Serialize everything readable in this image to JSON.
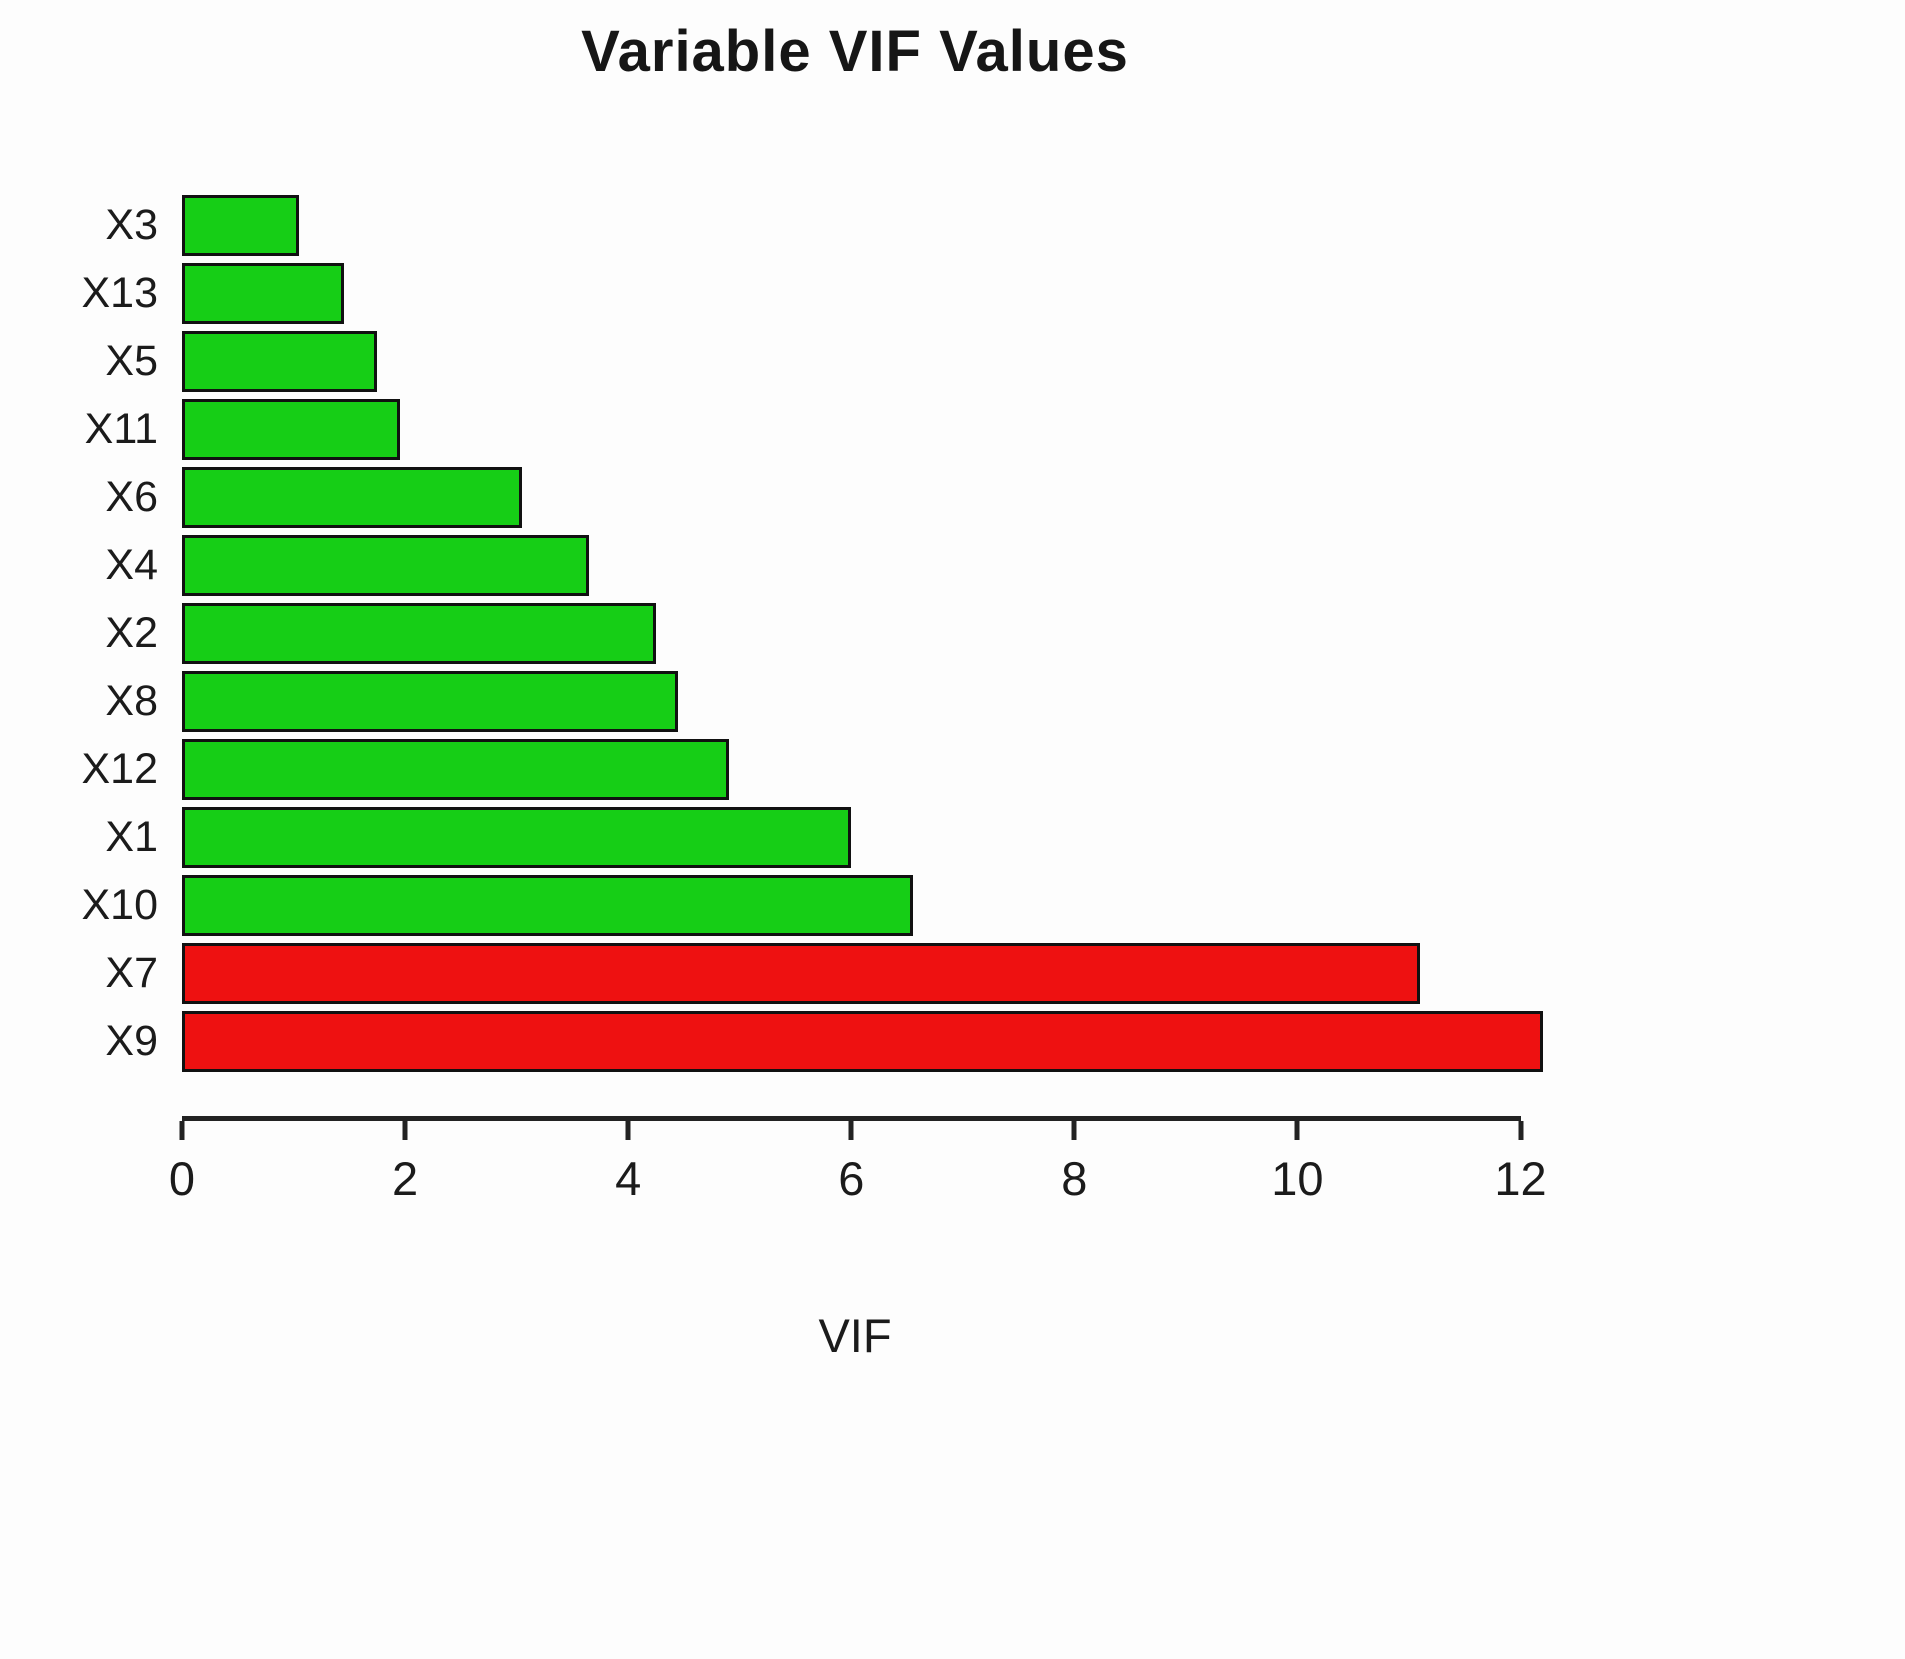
{
  "chart_data": {
    "type": "bar",
    "orientation": "horizontal",
    "title": "Variable VIF Values",
    "xlabel": "VIF",
    "ylabel": "",
    "categories": [
      "X3",
      "X13",
      "X5",
      "X11",
      "X6",
      "X4",
      "X2",
      "X8",
      "X12",
      "X1",
      "X10",
      "X7",
      "X9"
    ],
    "values": [
      1.05,
      1.45,
      1.75,
      1.95,
      3.05,
      3.65,
      4.25,
      4.45,
      4.9,
      6.0,
      6.55,
      11.1,
      12.2
    ],
    "bar_colors": [
      "#16CE16",
      "#16CE16",
      "#16CE16",
      "#16CE16",
      "#16CE16",
      "#16CE16",
      "#16CE16",
      "#16CE16",
      "#16CE16",
      "#16CE16",
      "#16CE16",
      "#EE1111",
      "#EE1111"
    ],
    "xlim": [
      0,
      12.3
    ],
    "x_ticks": [
      "0",
      "2",
      "4",
      "6",
      "8",
      "10",
      "12"
    ],
    "grid": false,
    "legend": "none"
  },
  "colors": {
    "bar_ok": "#16CE16",
    "bar_high": "#EE1111",
    "bar_border": "#111111",
    "axis": "#222222",
    "text": "#1B1B1B",
    "background": "#FDFDFD"
  }
}
